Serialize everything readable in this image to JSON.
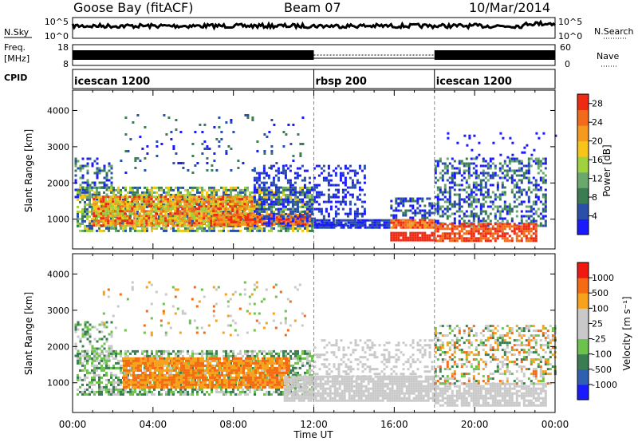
{
  "header": {
    "station": "Goose Bay (fitACF)",
    "beam": "Beam 07",
    "date": "10/Mar/2014"
  },
  "noise_panel": {
    "left_label": "N.Sky",
    "right_label": "N.Search",
    "left_ticks": [
      "10^5",
      "10^0"
    ],
    "right_ticks": [
      "10^5",
      "10^0"
    ]
  },
  "freq_panel": {
    "left_label_1": "Freq.",
    "left_label_2": "[MHz]",
    "right_label": "Nave",
    "left_ticks": [
      "18",
      "8"
    ],
    "right_ticks": [
      "60",
      "0"
    ]
  },
  "cpid_panel": {
    "label": "CPID",
    "segments": [
      {
        "name": "icescan 1200",
        "start_h": 0
      },
      {
        "name": "rbsp 200",
        "start_h": 12
      },
      {
        "name": "icescan 1200",
        "start_h": 18
      }
    ]
  },
  "colors": {
    "power": [
      "#1a1aff",
      "#2a4fa8",
      "#3b7d52",
      "#6aa86c",
      "#9fd23e",
      "#f5c518",
      "#f59a1c",
      "#f26a1a",
      "#ee2a12"
    ],
    "velocity": [
      "#1a1aff",
      "#2f5fb0",
      "#3b7d52",
      "#6cc24a",
      "#c9c9c9",
      "#c9c9c9",
      "#f6a21a",
      "#f56b14",
      "#ee1a12"
    ]
  },
  "chart_data": [
    {
      "type": "heatmap",
      "name": "Power",
      "ylabel": "Slant Range [km]",
      "xlabel": "Time UT",
      "x_ticks": [
        "00:00",
        "04:00",
        "08:00",
        "12:00",
        "16:00",
        "20:00",
        "00:00"
      ],
      "xlim_hours": [
        0,
        24
      ],
      "y_ticks": [
        "1000",
        "2000",
        "3000",
        "4000"
      ],
      "ylim_km": [
        180,
        4560
      ],
      "colorbar_label": "Power [dB]",
      "colorbar_ticks": [
        "4",
        "8",
        "12",
        "16",
        "20",
        "24",
        "28"
      ],
      "colorbar_range": [
        0,
        30
      ]
    },
    {
      "type": "heatmap",
      "name": "Velocity",
      "ylabel": "Slant Range [km]",
      "xlabel": "Time UT",
      "x_ticks": [
        "00:00",
        "04:00",
        "08:00",
        "12:00",
        "16:00",
        "20:00",
        "00:00"
      ],
      "xlim_hours": [
        0,
        24
      ],
      "y_ticks": [
        "1000",
        "2000",
        "3000",
        "4000"
      ],
      "ylim_km": [
        180,
        4560
      ],
      "colorbar_label": "Velocity [m s⁻¹]",
      "colorbar_ticks": [
        "1000",
        "500",
        "100",
        "25",
        "-25",
        "-100",
        "-500",
        "-1000"
      ]
    }
  ],
  "echo_regions": {
    "power": [
      {
        "t0": 0.1,
        "t1": 2.0,
        "r0": 1600,
        "r1": 2700,
        "dens": 0.45,
        "lvl": [
          0,
          3
        ]
      },
      {
        "t0": 0.2,
        "t1": 11.9,
        "r0": 700,
        "r1": 1900,
        "dens": 0.7,
        "lvl": [
          1,
          5
        ]
      },
      {
        "t0": 1.0,
        "t1": 9.0,
        "r0": 850,
        "r1": 1650,
        "dens": 0.85,
        "lvl": [
          4,
          8
        ]
      },
      {
        "t0": 7.0,
        "t1": 11.8,
        "r0": 850,
        "r1": 1150,
        "dens": 0.8,
        "lvl": [
          6,
          8
        ]
      },
      {
        "t0": 2.0,
        "t1": 11.5,
        "r0": 2300,
        "r1": 3900,
        "dens": 0.06,
        "lvl": [
          0,
          2
        ]
      },
      {
        "t0": 9.0,
        "t1": 14.5,
        "r0": 800,
        "r1": 2500,
        "dens": 0.35,
        "lvl": [
          0,
          1
        ]
      },
      {
        "t0": 12.0,
        "t1": 15.8,
        "r0": 800,
        "r1": 1000,
        "dens": 0.9,
        "lvl": [
          0,
          1
        ]
      },
      {
        "t0": 15.8,
        "t1": 18.0,
        "r0": 1000,
        "r1": 1600,
        "dens": 0.5,
        "lvl": [
          0,
          2
        ]
      },
      {
        "t0": 15.8,
        "t1": 18.0,
        "r0": 750,
        "r1": 1000,
        "dens": 0.95,
        "lvl": [
          6,
          8
        ]
      },
      {
        "t0": 15.8,
        "t1": 18.0,
        "r0": 400,
        "r1": 650,
        "dens": 0.9,
        "lvl": [
          8,
          8
        ]
      },
      {
        "t0": 18.0,
        "t1": 23.5,
        "r0": 800,
        "r1": 2700,
        "dens": 0.45,
        "lvl": [
          0,
          3
        ]
      },
      {
        "t0": 18.0,
        "t1": 23.0,
        "r0": 400,
        "r1": 900,
        "dens": 0.75,
        "lvl": [
          7,
          8
        ]
      },
      {
        "t0": 18.5,
        "t1": 24.0,
        "r0": 2700,
        "r1": 3400,
        "dens": 0.05,
        "lvl": [
          0,
          0
        ]
      }
    ],
    "velocity": [
      {
        "t0": 0.1,
        "t1": 2.0,
        "r0": 1600,
        "r1": 2700,
        "dens": 0.35,
        "lvl": [
          2,
          4
        ]
      },
      {
        "t0": 0.2,
        "t1": 11.9,
        "r0": 700,
        "r1": 1900,
        "dens": 0.6,
        "lvl": [
          2,
          4
        ]
      },
      {
        "t0": 2.5,
        "t1": 10.8,
        "r0": 850,
        "r1": 1700,
        "dens": 0.85,
        "lvl": [
          6,
          7
        ]
      },
      {
        "t0": 1.5,
        "t1": 11.5,
        "r0": 2300,
        "r1": 3800,
        "dens": 0.06,
        "lvl": [
          3,
          7
        ]
      },
      {
        "t0": 10.5,
        "t1": 18.0,
        "r0": 500,
        "r1": 1200,
        "dens": 0.85,
        "lvl": [
          4,
          5
        ]
      },
      {
        "t0": 12.0,
        "t1": 18.0,
        "r0": 1200,
        "r1": 2200,
        "dens": 0.3,
        "lvl": [
          4,
          5
        ]
      },
      {
        "t0": 18.0,
        "t1": 23.5,
        "r0": 400,
        "r1": 1000,
        "dens": 0.75,
        "lvl": [
          4,
          5
        ]
      },
      {
        "t0": 18.0,
        "t1": 24.0,
        "r0": 1000,
        "r1": 2600,
        "dens": 0.4,
        "lvl": [
          2,
          7
        ]
      }
    ]
  }
}
